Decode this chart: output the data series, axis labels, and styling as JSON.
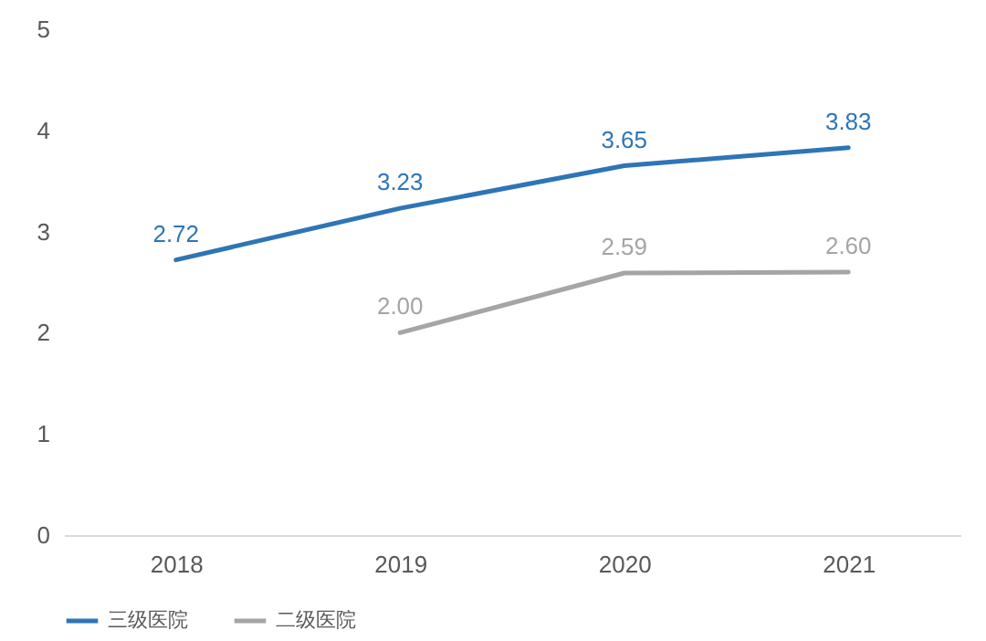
{
  "chart_data": {
    "type": "line",
    "categories": [
      "2018",
      "2019",
      "2020",
      "2021"
    ],
    "series": [
      {
        "name": "三级医院",
        "color": "#2e75b6",
        "values": [
          2.72,
          3.23,
          3.65,
          3.83
        ],
        "value_labels": [
          "2.72",
          "3.23",
          "3.65",
          "3.83"
        ]
      },
      {
        "name": "二级医院",
        "color": "#a5a5a5",
        "values": [
          null,
          2.0,
          2.59,
          2.6
        ],
        "value_labels": [
          null,
          "2.00",
          "2.59",
          "2.60"
        ]
      }
    ],
    "ylim": [
      0,
      5
    ],
    "yticks": [
      0,
      1,
      2,
      3,
      4,
      5
    ],
    "grid": false,
    "legend": "bottom",
    "marker": "none",
    "line_style": "solid"
  }
}
